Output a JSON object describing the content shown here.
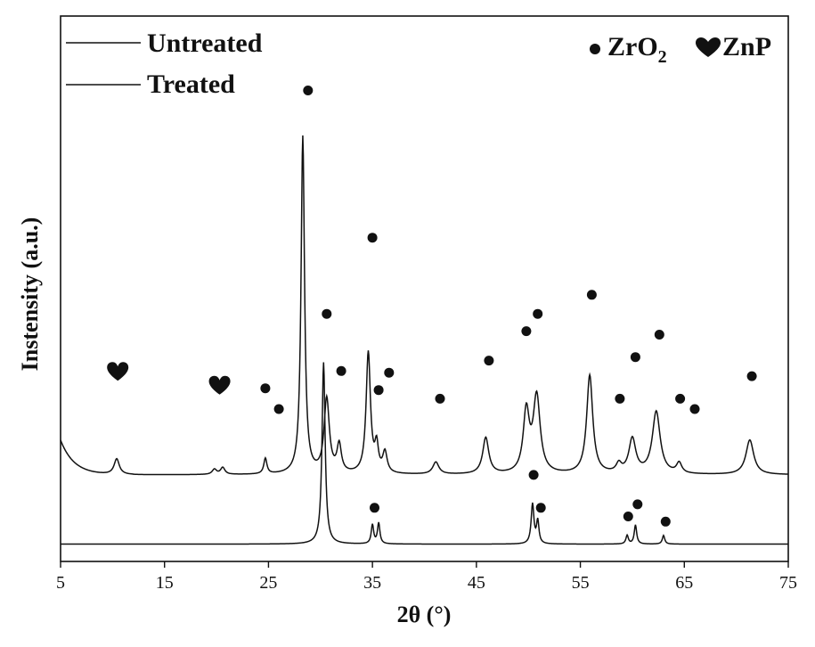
{
  "chart_data": {
    "type": "line",
    "xlabel": "2θ (°)",
    "ylabel": "Instensity (a.u.)",
    "xlim": [
      5,
      75
    ],
    "xticks": [
      5,
      15,
      25,
      35,
      45,
      55,
      65,
      75
    ],
    "yticks_shown": false,
    "grid": false,
    "legend": {
      "placement": "top-left",
      "entries": [
        "Untreated",
        "Treated"
      ]
    },
    "marker_legend": {
      "placement": "top-right",
      "entries": [
        {
          "symbol": "circle",
          "label_main": "ZrO",
          "label_sub": "2"
        },
        {
          "symbol": "heart",
          "label_main": "ZnP",
          "label_sub": ""
        }
      ]
    },
    "series": [
      {
        "name": "Untreated",
        "baseline": 1.0,
        "peaks": [
          [
            30.3,
            10.5,
            0.18
          ],
          [
            35.0,
            1.1,
            0.14
          ],
          [
            35.6,
            1.2,
            0.14
          ],
          [
            50.4,
            2.3,
            0.16
          ],
          [
            50.9,
            1.3,
            0.14
          ],
          [
            59.5,
            0.5,
            0.14
          ],
          [
            60.3,
            1.1,
            0.14
          ],
          [
            63.0,
            0.5,
            0.14
          ]
        ],
        "markers": [
          {
            "x": 35.2,
            "y": 3.1,
            "symbol": "circle"
          },
          {
            "x": 50.5,
            "y": 5.0,
            "symbol": "circle"
          },
          {
            "x": 51.2,
            "y": 3.1,
            "symbol": "circle"
          },
          {
            "x": 59.6,
            "y": 2.6,
            "symbol": "circle"
          },
          {
            "x": 60.5,
            "y": 3.3,
            "symbol": "circle"
          },
          {
            "x": 63.2,
            "y": 2.3,
            "symbol": "circle"
          }
        ]
      },
      {
        "name": "Treated",
        "baseline": 5.0,
        "peaks": [
          [
            10.4,
            0.9,
            0.3
          ],
          [
            19.8,
            0.3,
            0.25
          ],
          [
            20.6,
            0.4,
            0.25
          ],
          [
            24.7,
            0.9,
            0.18
          ],
          [
            28.3,
            19.5,
            0.2
          ],
          [
            30.6,
            4.3,
            0.3
          ],
          [
            31.8,
            1.6,
            0.25
          ],
          [
            34.6,
            7.0,
            0.25
          ],
          [
            35.4,
            1.5,
            0.2
          ],
          [
            36.2,
            1.2,
            0.25
          ],
          [
            41.1,
            0.7,
            0.35
          ],
          [
            45.9,
            2.1,
            0.35
          ],
          [
            49.8,
            3.5,
            0.35
          ],
          [
            50.8,
            4.4,
            0.4
          ],
          [
            55.9,
            5.7,
            0.35
          ],
          [
            58.7,
            0.5,
            0.3
          ],
          [
            60.0,
            2.0,
            0.4
          ],
          [
            62.3,
            3.6,
            0.45
          ],
          [
            64.5,
            0.6,
            0.3
          ],
          [
            71.3,
            2.0,
            0.45
          ]
        ],
        "markers": [
          {
            "x": 10.5,
            "y": 10.9,
            "symbol": "heart"
          },
          {
            "x": 20.3,
            "y": 10.1,
            "symbol": "heart"
          },
          {
            "x": 24.7,
            "y": 10.0,
            "symbol": "circle"
          },
          {
            "x": 26.0,
            "y": 8.8,
            "symbol": "circle"
          },
          {
            "x": 28.8,
            "y": 27.2,
            "symbol": "circle"
          },
          {
            "x": 30.6,
            "y": 14.3,
            "symbol": "circle"
          },
          {
            "x": 32.0,
            "y": 11.0,
            "symbol": "circle"
          },
          {
            "x": 35.0,
            "y": 18.7,
            "symbol": "circle"
          },
          {
            "x": 35.6,
            "y": 9.9,
            "symbol": "circle"
          },
          {
            "x": 36.6,
            "y": 10.9,
            "symbol": "circle"
          },
          {
            "x": 41.5,
            "y": 9.4,
            "symbol": "circle"
          },
          {
            "x": 46.2,
            "y": 11.6,
            "symbol": "circle"
          },
          {
            "x": 49.8,
            "y": 13.3,
            "symbol": "circle"
          },
          {
            "x": 50.9,
            "y": 14.3,
            "symbol": "circle"
          },
          {
            "x": 56.1,
            "y": 15.4,
            "symbol": "circle"
          },
          {
            "x": 58.8,
            "y": 9.4,
            "symbol": "circle"
          },
          {
            "x": 60.3,
            "y": 11.8,
            "symbol": "circle"
          },
          {
            "x": 62.6,
            "y": 13.1,
            "symbol": "circle"
          },
          {
            "x": 64.6,
            "y": 9.4,
            "symbol": "circle"
          },
          {
            "x": 66.0,
            "y": 8.8,
            "symbol": "circle"
          },
          {
            "x": 71.5,
            "y": 10.7,
            "symbol": "circle"
          }
        ]
      }
    ]
  }
}
